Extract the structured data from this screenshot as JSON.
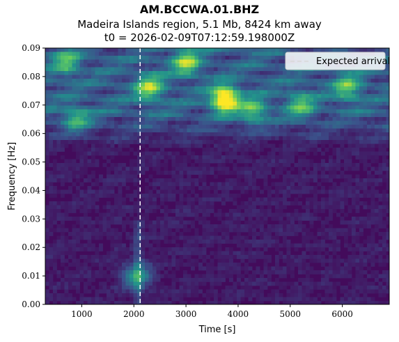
{
  "chart_data": {
    "type": "heatmap",
    "title": "AM.BCCWA.01.BHZ",
    "subtitle": "Madeira Islands region, 5.1 Mb, 8424 km away",
    "subtitle2": "t0 = 2026-02-09T07:12:59.198000Z",
    "xlabel": "Time [s]",
    "ylabel": "Frequency [Hz]",
    "xlim": [
      300,
      6900
    ],
    "ylim": [
      0.0,
      0.09
    ],
    "xticks": [
      1000,
      2000,
      3000,
      4000,
      5000,
      6000
    ],
    "xtick_labels": [
      "1000",
      "2000",
      "3000",
      "4000",
      "5000",
      "6000"
    ],
    "yticks": [
      0.0,
      0.01,
      0.02,
      0.03,
      0.04,
      0.05,
      0.06,
      0.07,
      0.08,
      0.09
    ],
    "ytick_labels": [
      "0.00",
      "0.01",
      "0.02",
      "0.03",
      "0.04",
      "0.05",
      "0.06",
      "0.07",
      "0.08",
      "0.09"
    ],
    "colormap": "viridis",
    "expected_arrival_time": 2120,
    "legend": {
      "label": "Expected arrival",
      "placement": "top-right"
    },
    "grid": false,
    "hotspots": [
      {
        "t": 3750,
        "f": 0.072,
        "level": 0.95
      },
      {
        "t": 3000,
        "f": 0.085,
        "level": 0.55
      },
      {
        "t": 2300,
        "f": 0.076,
        "level": 0.55
      },
      {
        "t": 2050,
        "f": 0.01,
        "level": 0.45
      },
      {
        "t": 700,
        "f": 0.085,
        "level": 0.4
      },
      {
        "t": 900,
        "f": 0.065,
        "level": 0.4
      },
      {
        "t": 6100,
        "f": 0.076,
        "level": 0.45
      },
      {
        "t": 4300,
        "f": 0.068,
        "level": 0.45
      },
      {
        "t": 5200,
        "f": 0.07,
        "level": 0.4
      }
    ]
  }
}
